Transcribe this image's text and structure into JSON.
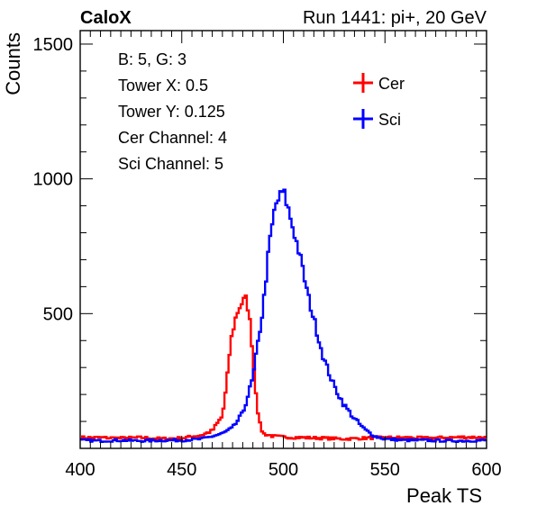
{
  "header": {
    "left": "CaloX",
    "right": "Run 1441: pi+, 20 GeV"
  },
  "info_box": {
    "lines": [
      "B: 5, G: 3",
      "Tower X: 0.5",
      "Tower Y: 0.125",
      "Cer Channel: 4",
      "Sci Channel: 5"
    ]
  },
  "colors": {
    "cer": "#ff0000",
    "sci": "#0000ff",
    "axis": "#000000"
  },
  "chart_data": {
    "type": "line",
    "xlabel": "Peak TS",
    "ylabel": "Counts",
    "xlim": [
      400,
      600
    ],
    "ylim": [
      0,
      1550
    ],
    "x_ticks": [
      400,
      450,
      500,
      550,
      600
    ],
    "y_ticks": [
      500,
      1000,
      1500
    ],
    "grid": false,
    "legend_position": "top-right",
    "series": [
      {
        "name": "Cer",
        "x": [
          400,
          410,
          420,
          430,
          440,
          450,
          460,
          465,
          470,
          472,
          474,
          476,
          478,
          480,
          482,
          484,
          486,
          488,
          490,
          495,
          500,
          510,
          520,
          530,
          540,
          550,
          560,
          570,
          580,
          590,
          600
        ],
        "values": [
          40,
          40,
          38,
          40,
          36,
          38,
          50,
          65,
          120,
          230,
          390,
          470,
          520,
          545,
          555,
          440,
          250,
          100,
          55,
          45,
          42,
          40,
          38,
          35,
          38,
          40,
          40,
          38,
          40,
          42,
          40
        ]
      },
      {
        "name": "Sci",
        "x": [
          400,
          410,
          420,
          430,
          440,
          450,
          460,
          470,
          475,
          480,
          485,
          490,
          493,
          496,
          498,
          500,
          502,
          505,
          508,
          512,
          516,
          520,
          525,
          530,
          535,
          540,
          545,
          550,
          560,
          570,
          580,
          590,
          600
        ],
        "values": [
          30,
          28,
          30,
          28,
          30,
          30,
          35,
          55,
          75,
          130,
          260,
          520,
          750,
          900,
          930,
          955,
          900,
          810,
          720,
          570,
          450,
          330,
          230,
          160,
          110,
          70,
          45,
          35,
          30,
          30,
          28,
          28,
          30
        ]
      }
    ]
  }
}
